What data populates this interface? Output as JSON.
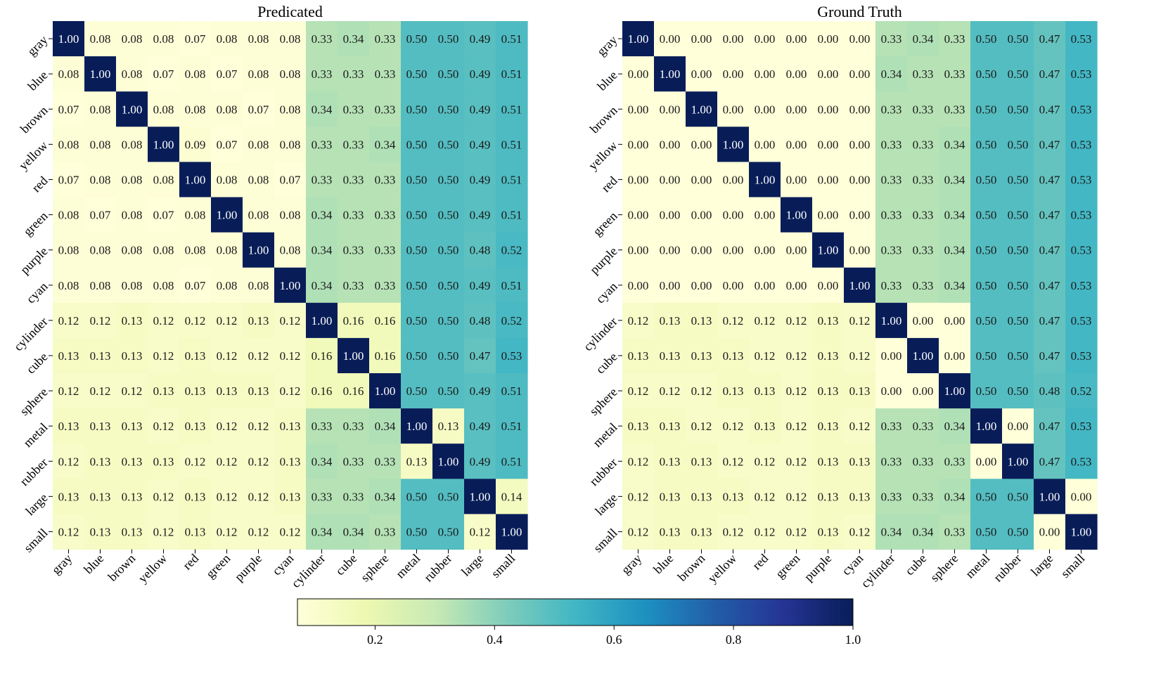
{
  "figure": {
    "colorbar_ticks": [
      "0.2",
      "0.4",
      "0.6",
      "0.8",
      "1.0"
    ]
  },
  "chart_data": [
    {
      "type": "heatmap",
      "title": "Predicated",
      "labels": [
        "gray",
        "blue",
        "brown",
        "yellow",
        "red",
        "green",
        "purple",
        "cyan",
        "cylinder",
        "cube",
        "sphere",
        "metal",
        "rubber",
        "large",
        "small"
      ],
      "values": [
        [
          1.0,
          0.08,
          0.08,
          0.08,
          0.07,
          0.08,
          0.08,
          0.08,
          0.33,
          0.34,
          0.33,
          0.5,
          0.5,
          0.49,
          0.51
        ],
        [
          0.08,
          1.0,
          0.08,
          0.07,
          0.08,
          0.07,
          0.08,
          0.08,
          0.33,
          0.33,
          0.33,
          0.5,
          0.5,
          0.49,
          0.51
        ],
        [
          0.07,
          0.08,
          1.0,
          0.08,
          0.08,
          0.08,
          0.07,
          0.08,
          0.34,
          0.33,
          0.33,
          0.5,
          0.5,
          0.49,
          0.51
        ],
        [
          0.08,
          0.08,
          0.08,
          1.0,
          0.09,
          0.07,
          0.08,
          0.08,
          0.33,
          0.33,
          0.34,
          0.5,
          0.5,
          0.49,
          0.51
        ],
        [
          0.07,
          0.08,
          0.08,
          0.08,
          1.0,
          0.08,
          0.08,
          0.07,
          0.33,
          0.33,
          0.33,
          0.5,
          0.5,
          0.49,
          0.51
        ],
        [
          0.08,
          0.07,
          0.08,
          0.07,
          0.08,
          1.0,
          0.08,
          0.08,
          0.34,
          0.33,
          0.33,
          0.5,
          0.5,
          0.49,
          0.51
        ],
        [
          0.08,
          0.08,
          0.08,
          0.08,
          0.08,
          0.08,
          1.0,
          0.08,
          0.34,
          0.33,
          0.33,
          0.5,
          0.5,
          0.48,
          0.52
        ],
        [
          0.08,
          0.08,
          0.08,
          0.08,
          0.07,
          0.08,
          0.08,
          1.0,
          0.34,
          0.33,
          0.33,
          0.5,
          0.5,
          0.49,
          0.51
        ],
        [
          0.12,
          0.12,
          0.13,
          0.12,
          0.12,
          0.12,
          0.13,
          0.12,
          1.0,
          0.16,
          0.16,
          0.5,
          0.5,
          0.48,
          0.52
        ],
        [
          0.13,
          0.13,
          0.13,
          0.12,
          0.13,
          0.12,
          0.12,
          0.12,
          0.16,
          1.0,
          0.16,
          0.5,
          0.5,
          0.47,
          0.53
        ],
        [
          0.12,
          0.12,
          0.12,
          0.13,
          0.13,
          0.13,
          0.13,
          0.12,
          0.16,
          0.16,
          1.0,
          0.5,
          0.5,
          0.49,
          0.51
        ],
        [
          0.13,
          0.13,
          0.13,
          0.12,
          0.13,
          0.12,
          0.12,
          0.13,
          0.33,
          0.33,
          0.34,
          1.0,
          0.13,
          0.49,
          0.51
        ],
        [
          0.12,
          0.13,
          0.13,
          0.13,
          0.12,
          0.12,
          0.12,
          0.13,
          0.34,
          0.33,
          0.33,
          0.13,
          1.0,
          0.49,
          0.51
        ],
        [
          0.13,
          0.13,
          0.13,
          0.12,
          0.13,
          0.12,
          0.12,
          0.13,
          0.33,
          0.33,
          0.34,
          0.5,
          0.5,
          1.0,
          0.14
        ],
        [
          0.12,
          0.13,
          0.13,
          0.12,
          0.13,
          0.12,
          0.12,
          0.12,
          0.34,
          0.34,
          0.33,
          0.5,
          0.5,
          0.12,
          1.0
        ]
      ],
      "color_range": [
        0.07,
        1.0
      ],
      "colormap": "YlGnBu"
    },
    {
      "type": "heatmap",
      "title": "Ground Truth",
      "labels": [
        "gray",
        "blue",
        "brown",
        "yellow",
        "red",
        "green",
        "purple",
        "cyan",
        "cylinder",
        "cube",
        "sphere",
        "metal",
        "rubber",
        "large",
        "small"
      ],
      "values": [
        [
          1.0,
          0.0,
          0.0,
          0.0,
          0.0,
          0.0,
          0.0,
          0.0,
          0.33,
          0.34,
          0.33,
          0.5,
          0.5,
          0.47,
          0.53
        ],
        [
          0.0,
          1.0,
          0.0,
          0.0,
          0.0,
          0.0,
          0.0,
          0.0,
          0.34,
          0.33,
          0.33,
          0.5,
          0.5,
          0.47,
          0.53
        ],
        [
          0.0,
          0.0,
          1.0,
          0.0,
          0.0,
          0.0,
          0.0,
          0.0,
          0.33,
          0.33,
          0.33,
          0.5,
          0.5,
          0.47,
          0.53
        ],
        [
          0.0,
          0.0,
          0.0,
          1.0,
          0.0,
          0.0,
          0.0,
          0.0,
          0.33,
          0.33,
          0.34,
          0.5,
          0.5,
          0.47,
          0.53
        ],
        [
          0.0,
          0.0,
          0.0,
          0.0,
          1.0,
          0.0,
          0.0,
          0.0,
          0.33,
          0.33,
          0.34,
          0.5,
          0.5,
          0.47,
          0.53
        ],
        [
          0.0,
          0.0,
          0.0,
          0.0,
          0.0,
          1.0,
          0.0,
          0.0,
          0.33,
          0.33,
          0.34,
          0.5,
          0.5,
          0.47,
          0.53
        ],
        [
          0.0,
          0.0,
          0.0,
          0.0,
          0.0,
          0.0,
          1.0,
          0.0,
          0.33,
          0.33,
          0.34,
          0.5,
          0.5,
          0.47,
          0.53
        ],
        [
          0.0,
          0.0,
          0.0,
          0.0,
          0.0,
          0.0,
          0.0,
          1.0,
          0.33,
          0.33,
          0.34,
          0.5,
          0.5,
          0.47,
          0.53
        ],
        [
          0.12,
          0.13,
          0.13,
          0.12,
          0.12,
          0.12,
          0.13,
          0.12,
          1.0,
          0.0,
          0.0,
          0.5,
          0.5,
          0.47,
          0.53
        ],
        [
          0.13,
          0.13,
          0.13,
          0.13,
          0.12,
          0.12,
          0.13,
          0.12,
          0.0,
          1.0,
          0.0,
          0.5,
          0.5,
          0.47,
          0.53
        ],
        [
          0.12,
          0.12,
          0.12,
          0.13,
          0.13,
          0.12,
          0.13,
          0.13,
          0.0,
          0.0,
          1.0,
          0.5,
          0.5,
          0.48,
          0.52
        ],
        [
          0.13,
          0.13,
          0.12,
          0.12,
          0.13,
          0.12,
          0.13,
          0.12,
          0.33,
          0.33,
          0.34,
          1.0,
          0.0,
          0.47,
          0.53
        ],
        [
          0.12,
          0.13,
          0.13,
          0.12,
          0.12,
          0.12,
          0.13,
          0.13,
          0.33,
          0.33,
          0.33,
          0.0,
          1.0,
          0.47,
          0.53
        ],
        [
          0.12,
          0.13,
          0.13,
          0.13,
          0.12,
          0.12,
          0.13,
          0.13,
          0.33,
          0.33,
          0.34,
          0.5,
          0.5,
          1.0,
          0.0
        ],
        [
          0.12,
          0.13,
          0.13,
          0.12,
          0.12,
          0.12,
          0.13,
          0.12,
          0.34,
          0.34,
          0.33,
          0.5,
          0.5,
          0.0,
          1.0
        ]
      ],
      "color_range": [
        0.07,
        1.0
      ],
      "colormap": "YlGnBu"
    }
  ]
}
